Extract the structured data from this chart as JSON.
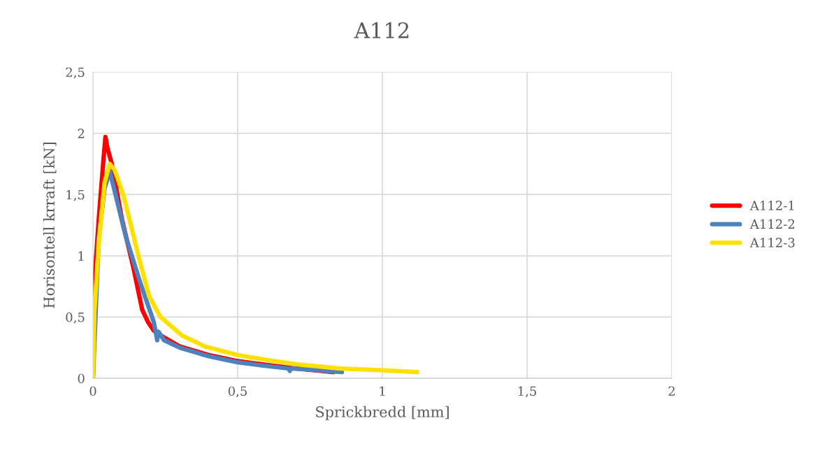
{
  "chart_data": {
    "type": "line",
    "title": "A112",
    "xlabel": "Sprickbredd [mm]",
    "ylabel": "Horisontell krraft [kN]",
    "xlim": [
      0,
      2
    ],
    "ylim": [
      0,
      2.5
    ],
    "xticks": [
      0,
      {
        "value": 0.5,
        "label": "0,5"
      },
      1,
      {
        "value": 1.5,
        "label": "1,5"
      },
      2
    ],
    "yticks": [
      0,
      {
        "value": 0.5,
        "label": "0,5"
      },
      1,
      {
        "value": 1.5,
        "label": "1,5"
      },
      2,
      {
        "value": 2.5,
        "label": "2,5"
      }
    ],
    "grid": true,
    "legend": "right",
    "marker": "none",
    "line_style": "solid",
    "series": [
      {
        "name": "A112-1",
        "color": "#ff0000",
        "x": [
          0,
          0.005,
          0.02,
          0.035,
          0.043,
          0.05,
          0.065,
          0.1,
          0.14,
          0.17,
          0.19,
          0.21,
          0.234,
          0.3,
          0.4,
          0.5,
          0.6,
          0.7,
          0.83
        ],
        "values": [
          0,
          0.79,
          1.3,
          1.75,
          1.97,
          1.88,
          1.75,
          1.3,
          0.9,
          0.56,
          0.46,
          0.39,
          0.35,
          0.26,
          0.19,
          0.14,
          0.11,
          0.08,
          0.05
        ]
      },
      {
        "name": "A112-2",
        "color": "#4f81bd",
        "x": [
          0,
          0.02,
          0.04,
          0.058,
          0.08,
          0.113,
          0.162,
          0.21,
          0.222,
          0.226,
          0.235,
          0.246,
          0.3,
          0.4,
          0.5,
          0.6,
          0.675,
          0.68,
          0.685,
          0.75,
          0.86
        ],
        "values": [
          0,
          1.15,
          1.55,
          1.69,
          1.48,
          1.16,
          0.79,
          0.46,
          0.31,
          0.38,
          0.35,
          0.31,
          0.25,
          0.18,
          0.13,
          0.1,
          0.08,
          0.06,
          0.08,
          0.07,
          0.05
        ]
      },
      {
        "name": "A112-3",
        "color": "#ffe000",
        "x": [
          0,
          0.005,
          0.02,
          0.04,
          0.058,
          0.075,
          0.106,
          0.155,
          0.194,
          0.234,
          0.307,
          0.387,
          0.5,
          0.6,
          0.72,
          0.85,
          1.0,
          1.12
        ],
        "values": [
          0,
          0.55,
          1.1,
          1.6,
          1.75,
          1.7,
          1.49,
          1.02,
          0.67,
          0.5,
          0.35,
          0.26,
          0.19,
          0.15,
          0.11,
          0.08,
          0.065,
          0.05
        ]
      }
    ]
  }
}
